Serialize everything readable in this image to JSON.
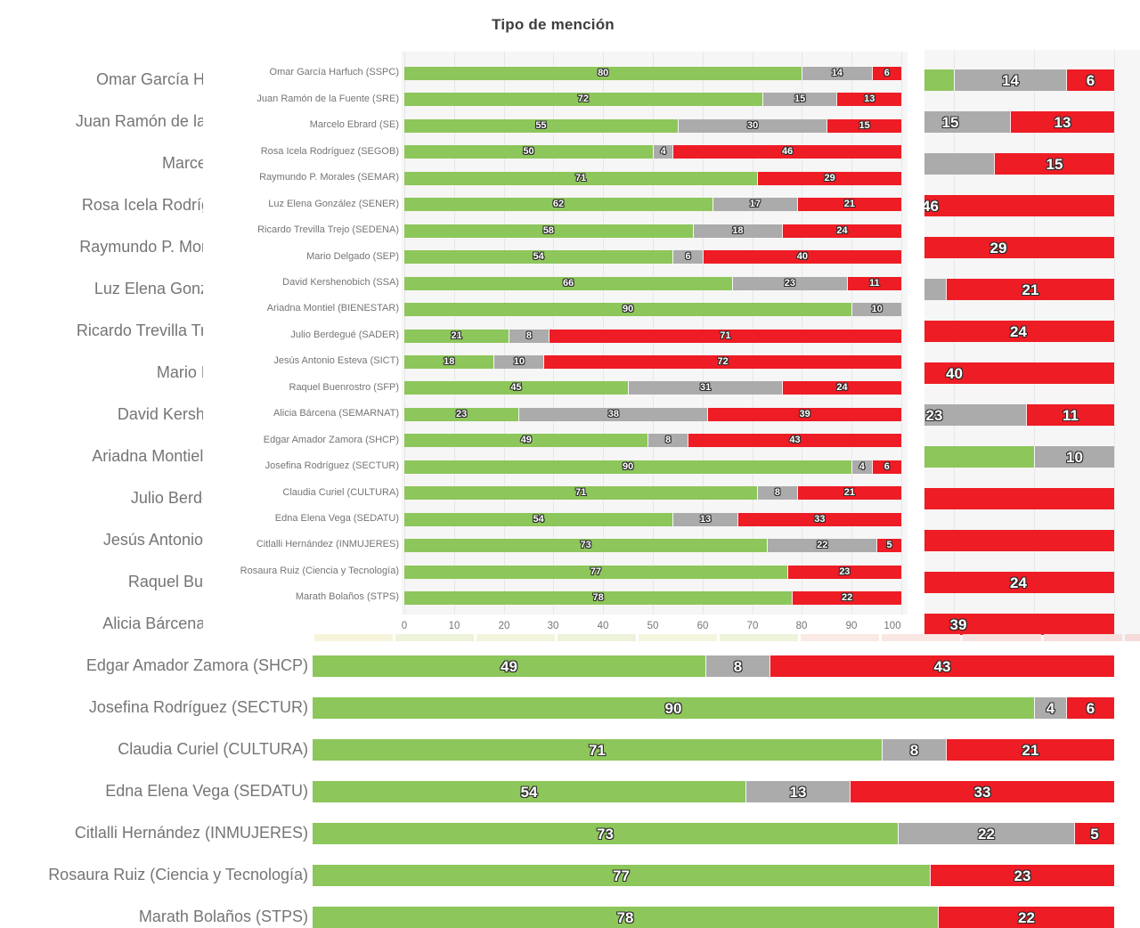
{
  "chart_data": {
    "type": "bar",
    "orientation": "horizontal",
    "stacked": true,
    "title": "Tipo de mención",
    "xlabel": "",
    "xlim": [
      0,
      100
    ],
    "x_ticks": [
      0,
      10,
      20,
      30,
      40,
      50,
      60,
      70,
      80,
      90,
      100
    ],
    "grid": "vertical light gridlines",
    "categories": [
      "Omar García Harfuch (SSPC)",
      "Juan Ramón de la Fuente (SRE)",
      "Marcelo Ebrard (SE)",
      "Rosa Icela Rodríguez (SEGOB)",
      "Raymundo P. Morales (SEMAR)",
      "Luz Elena González (SENER)",
      "Ricardo Trevilla Trejo (SEDENA)",
      "Mario Delgado (SEP)",
      "David Kershenobich (SSA)",
      "Ariadna Montiel (BIENESTAR)",
      "Julio Berdegué (SADER)",
      "Jesús Antonio Esteva (SICT)",
      "Raquel Buenrostro (SFP)",
      "Alicia Bárcena (SEMARNAT)",
      "Edgar Amador Zamora (SHCP)",
      "Josefina Rodríguez (SECTUR)",
      "Claudia Curiel (CULTURA)",
      "Edna Elena Vega (SEDATU)",
      "Citlalli Hernández (INMUJERES)",
      "Rosaura Ruiz (Ciencia y Tecnología)",
      "Marath Bolaños (STPS)"
    ],
    "series": [
      {
        "name": "green",
        "color": "#8dc65a",
        "values": [
          80,
          72,
          55,
          50,
          71,
          62,
          58,
          54,
          66,
          90,
          21,
          18,
          45,
          23,
          49,
          90,
          71,
          54,
          73,
          77,
          78
        ]
      },
      {
        "name": "gray",
        "color": "#ababab",
        "values": [
          14,
          15,
          30,
          4,
          0,
          17,
          18,
          6,
          23,
          10,
          8,
          10,
          31,
          38,
          8,
          4,
          8,
          13,
          22,
          0,
          0
        ]
      },
      {
        "name": "red",
        "color": "#ee1c24",
        "values": [
          6,
          13,
          15,
          46,
          29,
          21,
          24,
          40,
          11,
          0,
          71,
          72,
          24,
          39,
          43,
          6,
          21,
          33,
          5,
          23,
          22
        ]
      }
    ],
    "colors": {
      "plot_background": "#f6f6f6",
      "gridline": "#e7e7e7",
      "axis_label": "#757575",
      "category_label": "#757575",
      "title": "#3d3d3d",
      "value_label": "#ffffff",
      "value_outline": "#2b2b2b"
    }
  },
  "background_layer": {
    "description": "enlarged copy of the same chart partially visible behind the white panel",
    "truncated_left_labels_visible": [
      "Omar García Ha",
      "Juan Ramón de la",
      "Marcel",
      "Rosa Icela Rodríg",
      "Raymundo P. Mora",
      "Luz Elena Gonz",
      "Ricardo Trevilla Tre",
      "Mario D",
      "David Kershe",
      "Ariadna Montiel (",
      "Julio Berde",
      "Jesús Antonio E",
      "Raquel Buen",
      "Alicia Bárcena ("
    ],
    "right_side_values_visible": [
      "14",
      "6",
      "15",
      "13",
      "15",
      "46",
      "29",
      "21",
      "24",
      "40",
      "23",
      "11",
      "10",
      "24",
      "39"
    ]
  },
  "bottom_strip": {
    "cell_colors": [
      "#f6f4da",
      "#edf3da",
      "#f2f5dc",
      "#edf3da",
      "#f4f6de",
      "#eef3db",
      "#fbe9e6",
      "#fae7e4",
      "#f8e0de",
      "#f8dddd",
      "#f7dada"
    ]
  }
}
